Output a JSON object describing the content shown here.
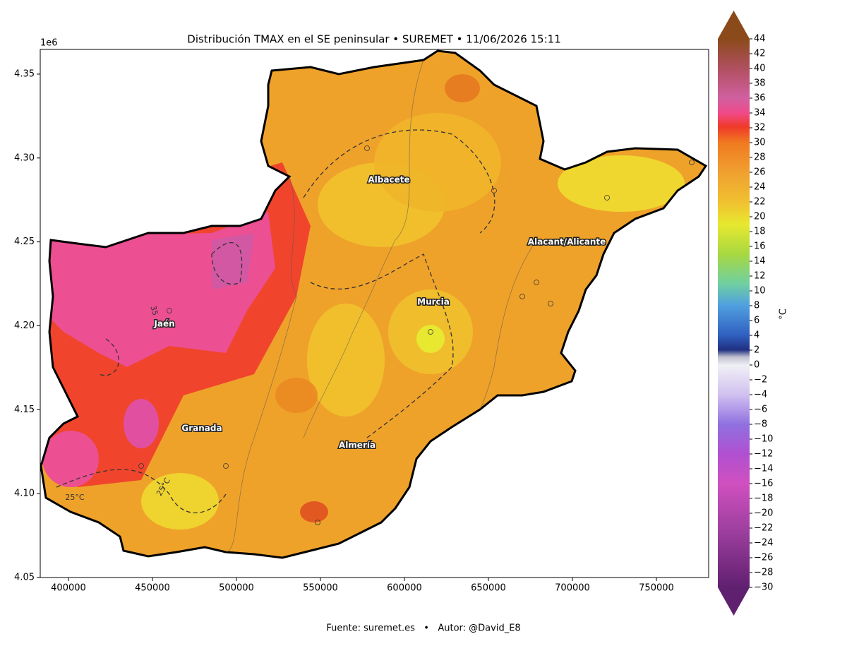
{
  "map": {
    "title": "Distribución TMAX en el SE peninsular • SUREMET • 11/06/2026 15:11",
    "xlim": [
      383200,
      781100
    ],
    "ylim": [
      4.05,
      4.3647
    ],
    "xticks": [
      400000,
      450000,
      500000,
      550000,
      600000,
      650000,
      700000,
      750000
    ],
    "yticks": [
      4.05,
      {
        "value": 4.1,
        "label": "4.10"
      },
      4.15,
      {
        "value": 4.2,
        "label": "4.20"
      },
      4.25,
      {
        "value": 4.3,
        "label": "4.30"
      },
      4.35
    ],
    "y_offset_label": "1e6",
    "cities": [
      "Albacete",
      "Alacant/Alicante",
      "Murcia",
      "Jaén",
      "Granada",
      "Almería"
    ],
    "contour_labels": [
      "25°C",
      "35",
      "25°C"
    ]
  },
  "colorbar": {
    "label": "°C",
    "lim": [
      -30,
      44
    ],
    "ticks": [
      44,
      42,
      40,
      38,
      36,
      34,
      32,
      30,
      28,
      26,
      24,
      22,
      20,
      18,
      16,
      14,
      12,
      10,
      8,
      6,
      4,
      2,
      0,
      {
        "value": -2,
        "label": "−2"
      },
      {
        "value": -4,
        "label": "−4"
      },
      {
        "value": -6,
        "label": "−6"
      },
      {
        "value": -8,
        "label": "−8"
      },
      {
        "value": -10,
        "label": "−10"
      },
      {
        "value": -12,
        "label": "−12"
      },
      {
        "value": -14,
        "label": "−14"
      },
      {
        "value": -16,
        "label": "−16"
      },
      {
        "value": -18,
        "label": "−18"
      },
      {
        "value": -20,
        "label": "−20"
      },
      {
        "value": -22,
        "label": "−22"
      },
      {
        "value": -24,
        "label": "−24"
      },
      {
        "value": -26,
        "label": "−26"
      },
      {
        "value": -28,
        "label": "−28"
      },
      {
        "value": -30,
        "label": "−30"
      }
    ]
  },
  "footer": "Fuente: suremet.es   •   Autor: @David_E8"
}
